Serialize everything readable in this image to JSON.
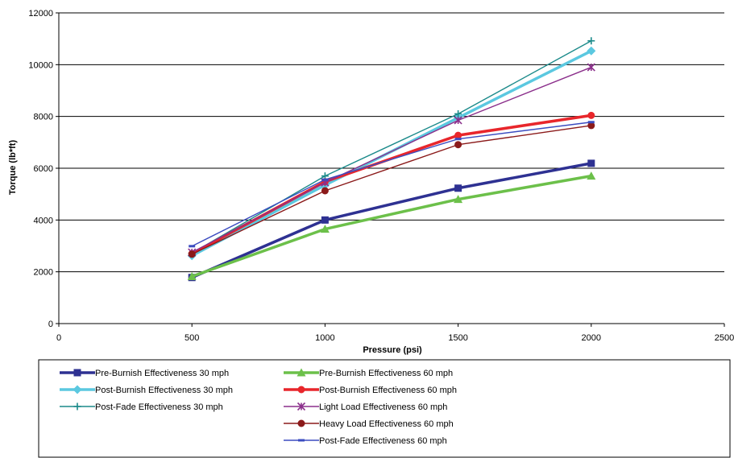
{
  "chart_data": {
    "type": "line",
    "xlabel": "Pressure (psi)",
    "ylabel": "Torque (lb*ft)",
    "xlim": [
      0,
      2500
    ],
    "ylim": [
      0,
      12000
    ],
    "xticks": [
      0,
      500,
      1000,
      1500,
      2000,
      2500
    ],
    "yticks": [
      0,
      2000,
      4000,
      6000,
      8000,
      10000,
      12000
    ],
    "grid": "horizontal",
    "legend_position": "bottom",
    "x": [
      500,
      1000,
      1500,
      2000
    ],
    "series": [
      {
        "name": "Pre-Burnish Effectiveness 30 mph",
        "values": [
          1780,
          4000,
          5230,
          6190
        ],
        "color": "#2E3192",
        "marker": "square",
        "width": 3.5
      },
      {
        "name": "Post-Burnish Effectiveness 30 mph",
        "values": [
          2620,
          5350,
          7950,
          10530
        ],
        "color": "#5BC8E0",
        "marker": "diamond",
        "width": 3.5
      },
      {
        "name": "Post-Fade Effectiveness 30 mph",
        "values": [
          2720,
          5700,
          8100,
          10920
        ],
        "color": "#1B8A8A",
        "marker": "plus",
        "width": 1.4
      },
      {
        "name": "Pre-Burnish Effectiveness 60 mph",
        "values": [
          1820,
          3650,
          4800,
          5700
        ],
        "color": "#6CC04A",
        "marker": "triangle",
        "width": 3.5
      },
      {
        "name": "Post-Burnish Effectiveness 60 mph",
        "values": [
          2700,
          5480,
          7270,
          8040
        ],
        "color": "#E8262B",
        "marker": "circle",
        "width": 3.5
      },
      {
        "name": "Light Load Effectiveness 60 mph",
        "values": [
          2750,
          5450,
          7850,
          9900
        ],
        "color": "#8B2F8B",
        "marker": "star",
        "width": 1.4
      },
      {
        "name": "Heavy Load Effectiveness 60 mph",
        "values": [
          2680,
          5130,
          6910,
          7650
        ],
        "color": "#8B1A1A",
        "marker": "circle",
        "width": 1.4
      },
      {
        "name": "Post-Fade Effectiveness 60 mph",
        "values": [
          2990,
          5560,
          7130,
          7780
        ],
        "color": "#3B4CC0",
        "marker": "dash",
        "width": 1.4
      }
    ]
  }
}
